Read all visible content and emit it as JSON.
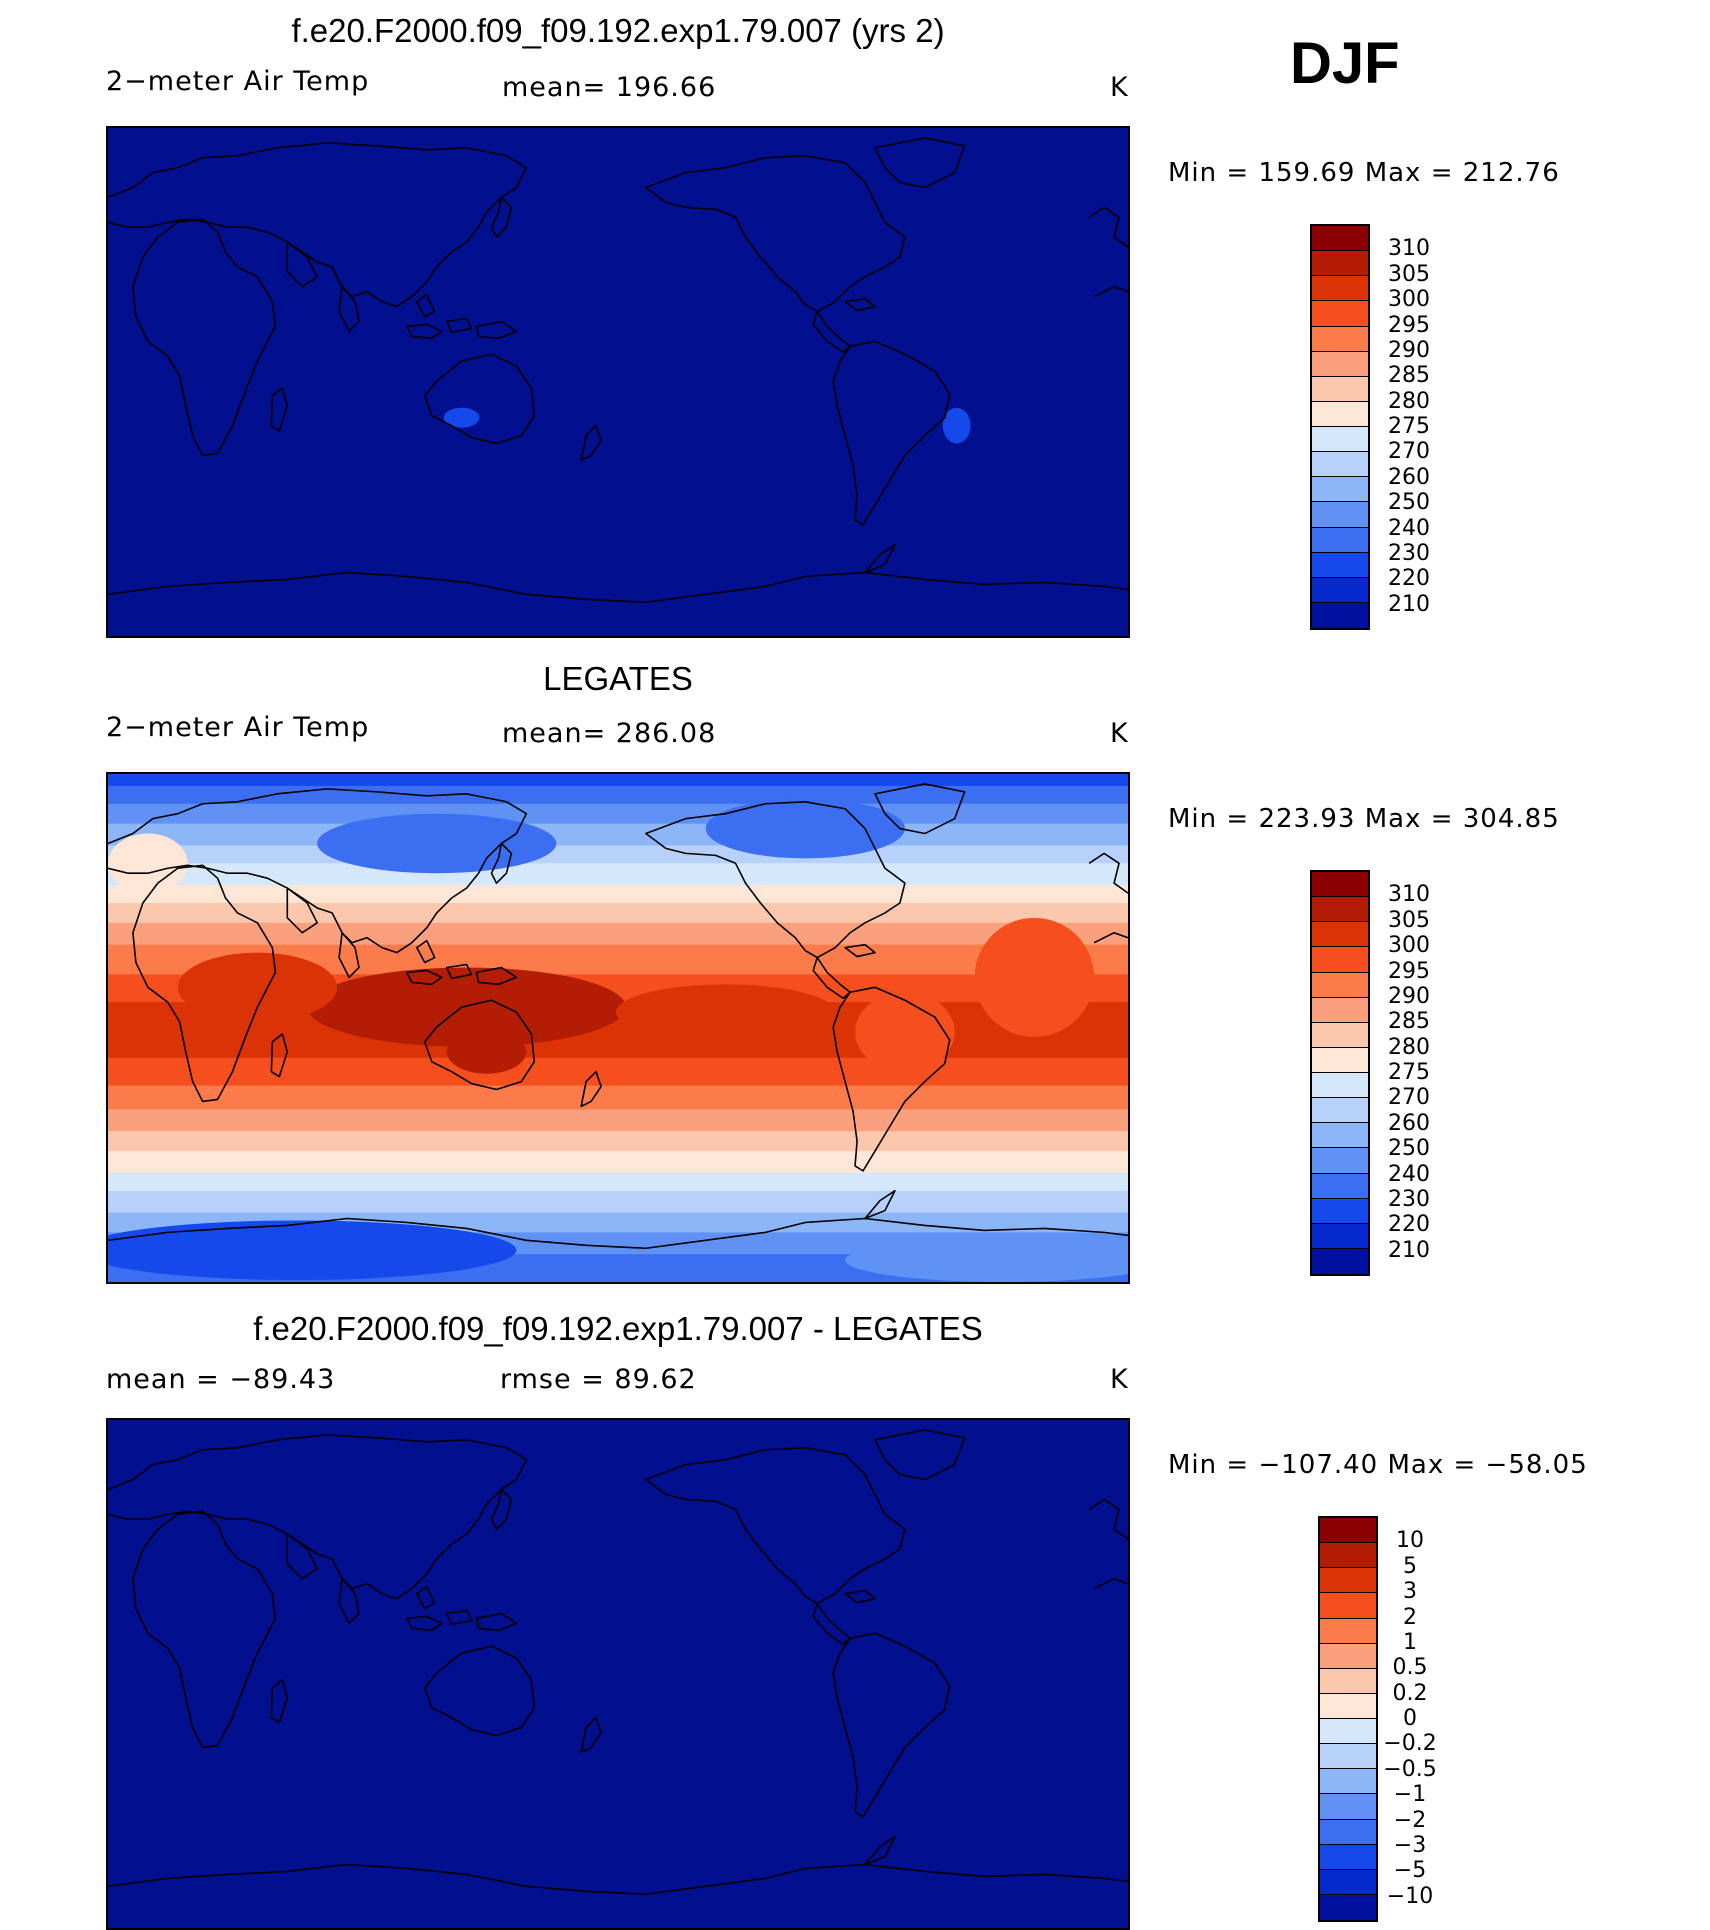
{
  "season": "DJF",
  "panels": [
    {
      "title": "f.e20.F2000.f09_f09.192.exp1.79.007 (yrs 2)",
      "left_label": "2−meter Air Temp",
      "center_label": "mean=  196.66",
      "units": "K",
      "minmax": "Min  =  159.69  Max  =  212.76",
      "fill": "uniform-low"
    },
    {
      "title": "LEGATES",
      "left_label": "2−meter Air Temp",
      "center_label": "mean=  286.08",
      "units": "K",
      "minmax": "Min  =  223.93  Max  =  304.85",
      "fill": "latitudinal-gradient"
    },
    {
      "title": "f.e20.F2000.f09_f09.192.exp1.79.007 - LEGATES",
      "left_label": "mean  =  −89.43",
      "center_label": "rmse  =    89.62",
      "units": "K",
      "minmax": "Min  =  −107.40  Max  =  −58.05",
      "fill": "uniform-low"
    }
  ],
  "colorbar_abs": {
    "colors": [
      "#8b0000",
      "#b31d04",
      "#dc3306",
      "#f54f1e",
      "#fb7b4b",
      "#fba07d",
      "#fcc8ad",
      "#fde6d6",
      "#d5e8fb",
      "#b7d1fb",
      "#8db6f9",
      "#5f92f4",
      "#3b6ef0",
      "#1549eb",
      "#0529cc",
      "#02109f"
    ],
    "labels": [
      "310",
      "305",
      "300",
      "295",
      "290",
      "285",
      "280",
      "275",
      "270",
      "260",
      "250",
      "240",
      "230",
      "220",
      "210"
    ]
  },
  "colorbar_diff": {
    "colors": [
      "#8b0000",
      "#b31d04",
      "#dc3306",
      "#f54f1e",
      "#fb7b4b",
      "#fba07d",
      "#fcc8ad",
      "#fde6d6",
      "#d5e8fb",
      "#b7d1fb",
      "#8db6f9",
      "#5f92f4",
      "#3b6ef0",
      "#1549eb",
      "#0529cc",
      "#02109f"
    ],
    "labels": [
      "10",
      "5",
      "3",
      "2",
      "1",
      "0.5",
      "0.2",
      "0",
      "−0.2",
      "−0.5",
      "−1",
      "−2",
      "−3",
      "−5",
      "−10"
    ]
  },
  "colors": {
    "model_fill": "#02108f",
    "coast": "#000000"
  }
}
